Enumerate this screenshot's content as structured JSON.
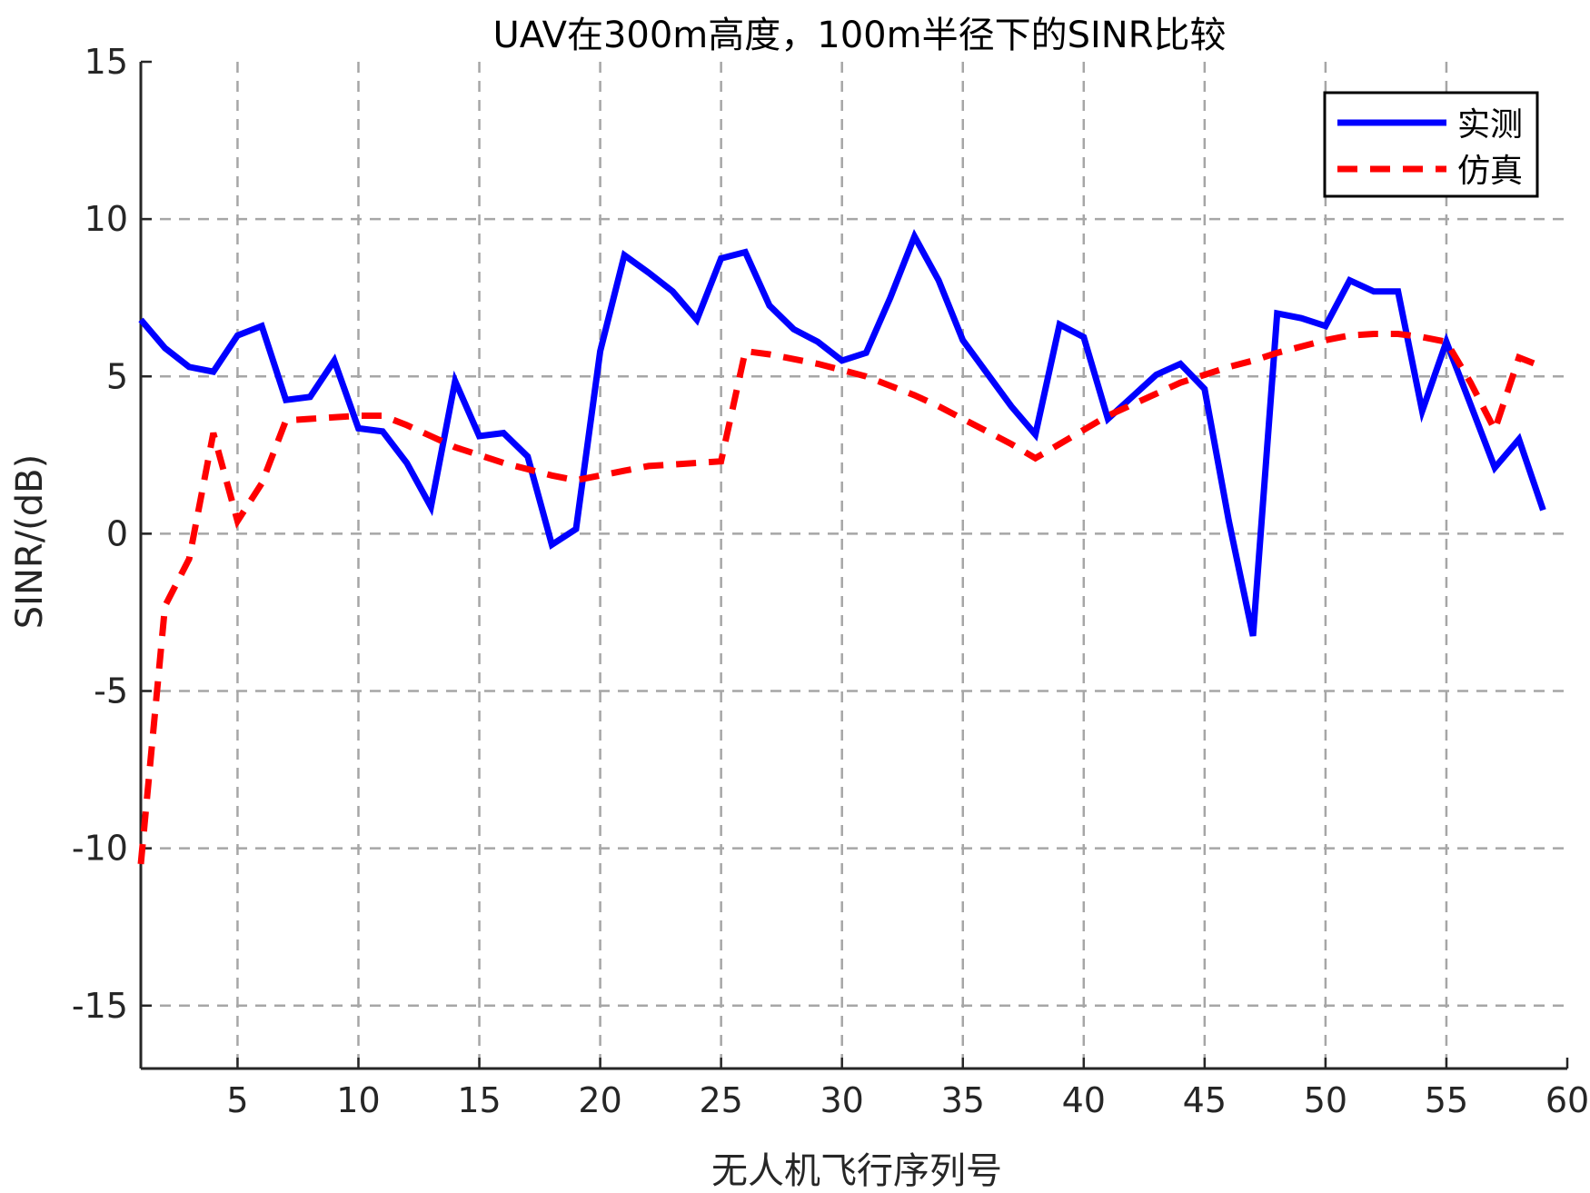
{
  "chart_data": {
    "type": "line",
    "title": "UAV在300m高度，100m半径下的SINR比较",
    "xlabel": "无人机飞行序列号",
    "ylabel": "SINR/(dB)",
    "xlim": [
      1,
      60
    ],
    "ylim": [
      -17,
      15
    ],
    "xticks": [
      5,
      10,
      15,
      20,
      25,
      30,
      35,
      40,
      45,
      50,
      55,
      60
    ],
    "yticks": [
      -15,
      -10,
      -5,
      0,
      5,
      10,
      15
    ],
    "grid": true,
    "legend_position": "top-right",
    "series": [
      {
        "name": "实测",
        "color": "#0000ff",
        "style": "solid",
        "x": [
          1,
          2,
          3,
          4,
          5,
          6,
          7,
          8,
          9,
          10,
          11,
          12,
          13,
          14,
          15,
          16,
          17,
          18,
          19,
          20,
          21,
          22,
          23,
          24,
          25,
          26,
          27,
          28,
          29,
          30,
          31,
          32,
          33,
          34,
          35,
          36,
          37,
          38,
          39,
          40,
          41,
          42,
          43,
          44,
          45,
          46,
          47,
          48,
          49,
          50,
          51,
          52,
          53,
          54,
          55,
          56,
          57,
          58,
          59
        ],
        "values": [
          6.8,
          5.9,
          5.3,
          5.15,
          6.3,
          6.6,
          4.25,
          4.35,
          5.5,
          3.35,
          3.25,
          2.25,
          0.85,
          4.85,
          3.1,
          3.2,
          2.45,
          -0.35,
          0.15,
          5.8,
          8.85,
          8.3,
          7.7,
          6.8,
          8.75,
          8.95,
          7.25,
          6.5,
          6.1,
          5.5,
          5.75,
          7.5,
          9.45,
          8.05,
          6.15,
          5.1,
          4.05,
          3.15,
          6.65,
          6.25,
          3.65,
          4.35,
          5.05,
          5.4,
          4.6,
          0.4,
          -3.25,
          7.0,
          6.85,
          6.6,
          8.05,
          7.7,
          7.7,
          3.9,
          6.1,
          4.1,
          2.1,
          3.0,
          0.75
        ]
      },
      {
        "name": "仿真",
        "color": "#ff0000",
        "style": "dashed",
        "x": [
          1,
          2,
          3,
          4,
          5,
          6,
          7,
          8,
          9,
          10,
          11,
          12,
          13,
          14,
          15,
          16,
          17,
          18,
          19,
          20,
          21,
          22,
          23,
          24,
          25,
          26,
          27,
          28,
          29,
          30,
          31,
          32,
          33,
          34,
          35,
          36,
          37,
          38,
          39,
          40,
          41,
          42,
          43,
          44,
          45,
          46,
          47,
          48,
          49,
          50,
          51,
          52,
          53,
          54,
          55,
          56,
          57,
          58,
          59
        ],
        "values": [
          -10.5,
          -2.3,
          -0.8,
          3.2,
          0.4,
          1.6,
          3.6,
          3.65,
          3.7,
          3.75,
          3.75,
          3.45,
          3.1,
          2.75,
          2.5,
          2.25,
          2.05,
          1.85,
          1.7,
          1.85,
          2.0,
          2.15,
          2.2,
          2.25,
          2.3,
          5.8,
          5.7,
          5.55,
          5.4,
          5.2,
          5.0,
          4.7,
          4.4,
          4.05,
          3.65,
          3.25,
          2.85,
          2.4,
          2.85,
          3.3,
          3.75,
          4.1,
          4.45,
          4.8,
          5.05,
          5.3,
          5.5,
          5.75,
          5.95,
          6.15,
          6.3,
          6.35,
          6.35,
          6.25,
          6.1,
          4.8,
          3.3,
          5.6,
          5.3
        ]
      }
    ]
  }
}
